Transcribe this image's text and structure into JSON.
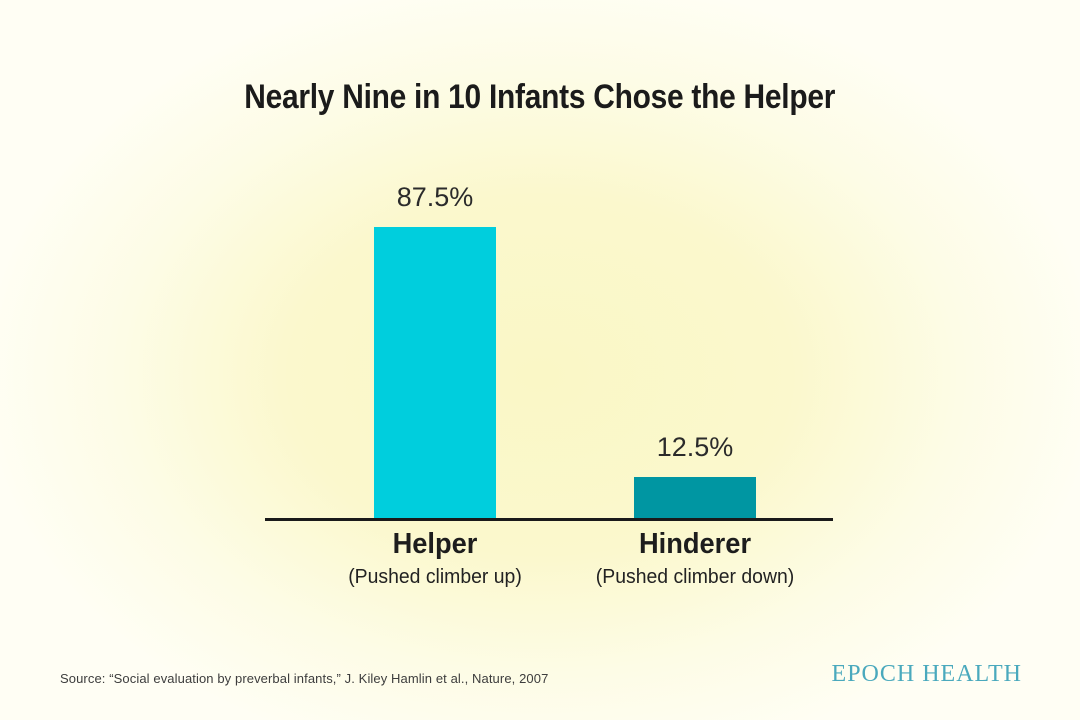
{
  "title": "Nearly Nine in 10 Infants Chose the Helper",
  "chart_data": {
    "type": "bar",
    "title": "Nearly Nine in 10 Infants Chose the Helper",
    "categories": [
      "Helper",
      "Hinderer"
    ],
    "category_sublabels": [
      "(Pushed climber up)",
      "(Pushed climber down)"
    ],
    "values": [
      87.5,
      12.5
    ],
    "value_labels": [
      "87.5%",
      "12.5%"
    ],
    "xlabel": "",
    "ylabel": "",
    "ylim": [
      0,
      100
    ],
    "grid": false,
    "legend": false,
    "bar_colors": [
      "#00cedd",
      "#0096a2"
    ],
    "pixels_per_percent": 3.34
  },
  "footer": {
    "source": "Source: “Social evaluation by preverbal infants,” J. Kiley Hamlin et al., Nature, 2007",
    "brand": "EPOCH HEALTH"
  },
  "colors": {
    "background_center": "#faf7c6",
    "background_edge": "#fffef4",
    "helper_bar": "#00cedd",
    "hinderer_bar": "#0096a2",
    "axis": "#1a1a1a",
    "title_text": "#1b1b1b",
    "brand_teal": "#4aa9bd"
  }
}
